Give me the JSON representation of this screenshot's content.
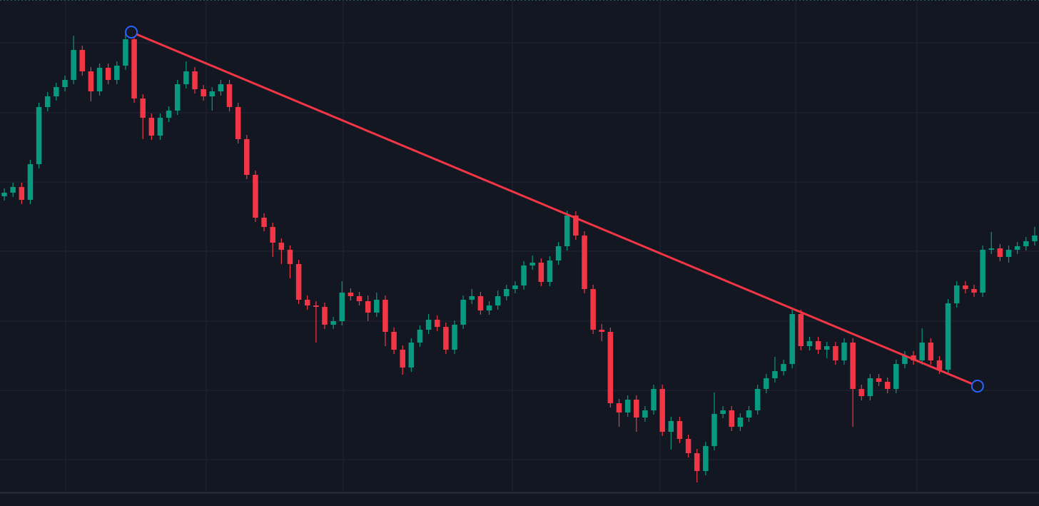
{
  "chart_data": {
    "type": "candlestick",
    "up_color": "#089981",
    "down_color": "#f23645",
    "background": "#131722",
    "grid": true,
    "grid_color": "#232632",
    "xlim": [
      0,
      120
    ],
    "xticks": [
      7.58,
      23.82,
      39.64,
      59.18,
      76.24,
      91.9,
      105.9
    ],
    "ylim": [
      0,
      690
    ],
    "yticks": [
      46,
      143,
      240,
      338,
      435,
      532,
      630
    ],
    "trendline": {
      "color": "#f23645",
      "handle_color": "#2962ff",
      "x": [
        15.17,
        112.9
      ],
      "y": [
        645,
        149
      ]
    },
    "open": [
      415,
      420,
      428,
      410,
      460,
      540,
      555,
      568,
      578,
      620,
      590,
      562,
      595,
      578,
      598,
      635,
      552,
      525,
      500,
      525,
      535,
      572,
      590,
      565,
      555,
      562,
      572,
      540,
      495,
      445,
      385,
      372,
      350,
      340,
      320,
      270,
      262,
      260,
      235,
      240,
      280,
      275,
      268,
      252,
      270,
      225,
      200,
      175,
      210,
      228,
      242,
      232,
      200,
      235,
      270,
      275,
      255,
      262,
      275,
      285,
      290,
      318,
      322,
      295,
      325,
      345,
      388,
      360,
      285,
      228,
      225,
      125,
      112,
      130,
      105,
      115,
      145,
      85,
      100,
      75,
      55,
      30,
      65,
      110,
      115,
      92,
      105,
      115,
      145,
      160,
      170,
      180,
      250,
      205,
      212,
      200,
      205,
      185,
      210,
      145,
      135,
      160,
      155,
      145,
      180,
      192,
      185,
      210,
      185,
      172,
      265,
      290,
      285,
      280,
      340,
      342,
      330,
      340,
      345,
      352
    ],
    "high": [
      426,
      434,
      434,
      466,
      546,
      561,
      574,
      584,
      640,
      626,
      596,
      601,
      601,
      604,
      645,
      641,
      558,
      531,
      531,
      541,
      578,
      604,
      596,
      571,
      568,
      578,
      578,
      546,
      501,
      451,
      391,
      378,
      356,
      346,
      326,
      276,
      268,
      266,
      246,
      296,
      286,
      281,
      276,
      280,
      276,
      231,
      206,
      216,
      234,
      250,
      248,
      238,
      241,
      276,
      285,
      281,
      268,
      283,
      291,
      296,
      324,
      332,
      328,
      331,
      351,
      395,
      394,
      366,
      291,
      236,
      231,
      131,
      136,
      136,
      121,
      151,
      151,
      106,
      106,
      81,
      61,
      71,
      140,
      121,
      121,
      111,
      121,
      151,
      166,
      190,
      186,
      256,
      256,
      218,
      218,
      211,
      211,
      216,
      216,
      151,
      166,
      166,
      161,
      186,
      198,
      198,
      230,
      216,
      191,
      271,
      296,
      296,
      291,
      346,
      365,
      348,
      346,
      351,
      358,
      372
    ],
    "low": [
      409,
      414,
      404,
      404,
      454,
      534,
      549,
      562,
      572,
      584,
      548,
      556,
      572,
      572,
      592,
      546,
      495,
      494,
      494,
      519,
      529,
      566,
      559,
      549,
      535,
      556,
      534,
      489,
      439,
      379,
      366,
      330,
      320,
      300,
      264,
      256,
      210,
      229,
      229,
      234,
      269,
      262,
      240,
      246,
      205,
      194,
      165,
      169,
      204,
      222,
      226,
      194,
      194,
      229,
      264,
      249,
      249,
      256,
      269,
      279,
      284,
      312,
      289,
      289,
      319,
      339,
      354,
      279,
      222,
      212,
      119,
      92,
      106,
      85,
      99,
      109,
      79,
      60,
      69,
      49,
      14,
      24,
      59,
      104,
      86,
      86,
      99,
      109,
      139,
      154,
      164,
      174,
      199,
      199,
      194,
      188,
      179,
      179,
      92,
      129,
      129,
      149,
      139,
      139,
      174,
      179,
      179,
      179,
      166,
      166,
      259,
      279,
      274,
      274,
      334,
      324,
      322,
      334,
      339,
      346
    ],
    "close": [
      420,
      428,
      410,
      460,
      540,
      555,
      568,
      578,
      620,
      590,
      562,
      595,
      578,
      598,
      635,
      552,
      525,
      500,
      525,
      535,
      572,
      590,
      565,
      555,
      562,
      572,
      540,
      495,
      445,
      385,
      372,
      350,
      340,
      320,
      270,
      262,
      260,
      235,
      240,
      280,
      275,
      268,
      252,
      270,
      225,
      200,
      175,
      210,
      228,
      242,
      232,
      200,
      235,
      270,
      275,
      255,
      262,
      275,
      285,
      290,
      318,
      322,
      295,
      325,
      345,
      388,
      360,
      285,
      228,
      225,
      125,
      112,
      130,
      105,
      115,
      145,
      85,
      100,
      75,
      55,
      30,
      65,
      110,
      115,
      92,
      105,
      115,
      145,
      160,
      170,
      180,
      250,
      205,
      212,
      200,
      205,
      185,
      210,
      145,
      135,
      160,
      155,
      145,
      180,
      192,
      185,
      210,
      185,
      172,
      265,
      290,
      285,
      280,
      340,
      342,
      330,
      340,
      345,
      352,
      360
    ]
  }
}
